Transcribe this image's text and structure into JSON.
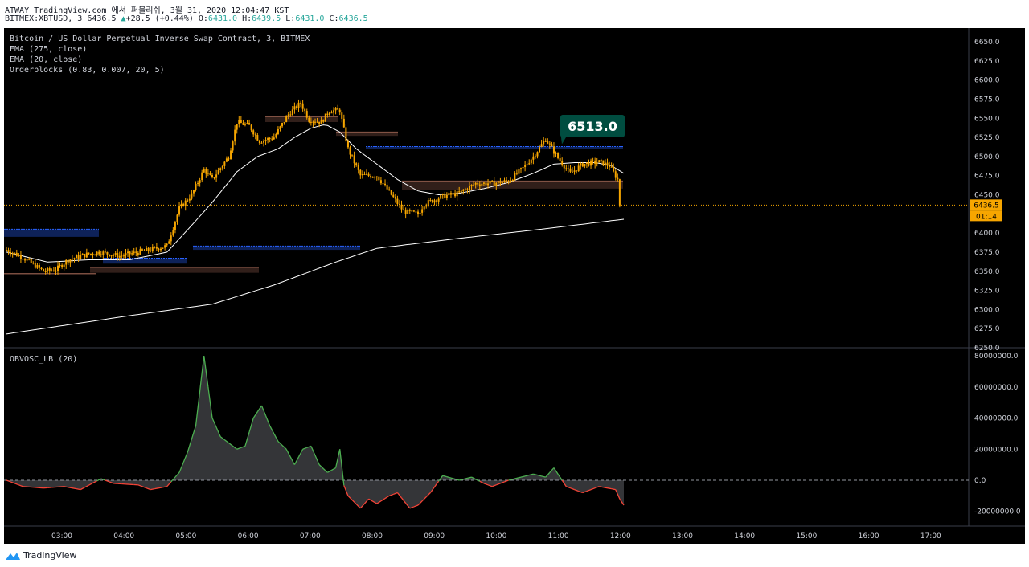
{
  "header": {
    "line1": "ATWAY TradingView.com 에서 퍼블리쉬, 3월 31, 2020 12:04:47 KST",
    "symbol": "BITMEX:XBTUSD, 3",
    "price": "6436.5",
    "arrow": "▲",
    "change": "+28.5 (+0.44%)",
    "o_label": "O:",
    "o_value": "6431.0",
    "h_label": "H:",
    "h_value": "6439.5",
    "l_label": "L:",
    "l_value": "6431.0",
    "c_label": "C:",
    "c_value": "6436.5"
  },
  "legend": {
    "title": "Bitcoin / US Dollar Perpetual Inverse Swap Contract, 3, BITMEX",
    "ema_slow": "EMA (275, close)",
    "ema_fast": "EMA (20, close)",
    "orderblocks": "Orderblocks (0.83, 0.007, 20, 5)",
    "oscillator": "OBVOSC_LB (20)"
  },
  "colors": {
    "background": "#000000",
    "candle": "#f7a600",
    "ema": "#ffffff",
    "bull_block": "#2962ff",
    "bear_block": "#8d5a4a",
    "osc_pos": "#4caf50",
    "osc_neg": "#f44336",
    "callout": "#004d40"
  },
  "callout": "6513.0",
  "price_badge": "6436.5",
  "countdown_badge": "01:14",
  "price_axis": [
    "6650.0",
    "6625.0",
    "6600.0",
    "6575.0",
    "6550.0",
    "6525.0",
    "6500.0",
    "6475.0",
    "6450.0",
    "6425.0",
    "6400.0",
    "6375.0",
    "6350.0",
    "6325.0",
    "6300.0",
    "6275.0",
    "6250.0"
  ],
  "osc_axis": [
    "80000000.0",
    "60000000.0",
    "40000000.0",
    "20000000.0",
    "0.0",
    "-20000000.0"
  ],
  "time_axis": [
    "03:00",
    "04:00",
    "05:00",
    "06:00",
    "07:00",
    "08:00",
    "09:00",
    "10:00",
    "11:00",
    "12:00",
    "13:00",
    "14:00",
    "15:00",
    "16:00",
    "17:00"
  ],
  "brand": "TradingView",
  "chart_data": {
    "type": "candlestick",
    "price_axis": {
      "min": 6250,
      "max": 6660
    },
    "osc_axis": {
      "min": -25000000,
      "max": 82000000
    },
    "time_axis": {
      "start": "02:25",
      "end": "17:30"
    },
    "key_points": {
      "close_points": [
        [
          0,
          6378
        ],
        [
          8,
          6368
        ],
        [
          18,
          6350
        ],
        [
          24,
          6352
        ],
        [
          30,
          6365
        ],
        [
          39,
          6372
        ],
        [
          45,
          6375
        ],
        [
          55,
          6370
        ],
        [
          66,
          6376
        ],
        [
          78,
          6383
        ],
        [
          84,
          6432
        ],
        [
          90,
          6450
        ],
        [
          96,
          6483
        ],
        [
          100,
          6470
        ],
        [
          108,
          6500
        ],
        [
          112,
          6545
        ],
        [
          118,
          6540
        ],
        [
          123,
          6520
        ],
        [
          130,
          6525
        ],
        [
          137,
          6555
        ],
        [
          143,
          6570
        ],
        [
          147,
          6548
        ],
        [
          153,
          6545
        ],
        [
          157,
          6560
        ],
        [
          162,
          6560
        ],
        [
          166,
          6510
        ],
        [
          172,
          6475
        ],
        [
          180,
          6475
        ],
        [
          187,
          6450
        ],
        [
          193,
          6428
        ],
        [
          200,
          6425
        ],
        [
          203,
          6438
        ],
        [
          212,
          6448
        ],
        [
          220,
          6452
        ],
        [
          228,
          6465
        ],
        [
          236,
          6465
        ],
        [
          244,
          6468
        ],
        [
          250,
          6482
        ],
        [
          256,
          6500
        ],
        [
          262,
          6523
        ],
        [
          268,
          6498
        ],
        [
          274,
          6478
        ],
        [
          280,
          6490
        ],
        [
          288,
          6493
        ],
        [
          293,
          6488
        ],
        [
          297,
          6470
        ],
        [
          298,
          6437
        ]
      ],
      "ema20_points": [
        [
          0,
          6375
        ],
        [
          20,
          6362
        ],
        [
          40,
          6365
        ],
        [
          60,
          6365
        ],
        [
          78,
          6375
        ],
        [
          90,
          6410
        ],
        [
          100,
          6440
        ],
        [
          112,
          6480
        ],
        [
          122,
          6500
        ],
        [
          132,
          6510
        ],
        [
          140,
          6525
        ],
        [
          148,
          6537
        ],
        [
          155,
          6542
        ],
        [
          162,
          6532
        ],
        [
          170,
          6510
        ],
        [
          180,
          6490
        ],
        [
          190,
          6470
        ],
        [
          200,
          6455
        ],
        [
          210,
          6450
        ],
        [
          220,
          6452
        ],
        [
          232,
          6458
        ],
        [
          244,
          6466
        ],
        [
          256,
          6478
        ],
        [
          266,
          6490
        ],
        [
          276,
          6492
        ],
        [
          286,
          6492
        ],
        [
          294,
          6488
        ],
        [
          300,
          6478
        ]
      ],
      "ema275_points": [
        [
          0,
          6268
        ],
        [
          60,
          6292
        ],
        [
          100,
          6307
        ],
        [
          130,
          6332
        ],
        [
          160,
          6362
        ],
        [
          180,
          6380
        ],
        [
          220,
          6393
        ],
        [
          260,
          6405
        ],
        [
          300,
          6418
        ]
      ],
      "osc_points": [
        [
          0,
          0
        ],
        [
          8,
          -4
        ],
        [
          18,
          -5
        ],
        [
          28,
          -4
        ],
        [
          36,
          -6
        ],
        [
          46,
          1
        ],
        [
          52,
          -2
        ],
        [
          64,
          -3
        ],
        [
          70,
          -6
        ],
        [
          78,
          -4
        ],
        [
          84,
          5
        ],
        [
          88,
          18
        ],
        [
          92,
          35
        ],
        [
          96,
          80
        ],
        [
          100,
          40
        ],
        [
          104,
          28
        ],
        [
          112,
          20
        ],
        [
          116,
          22
        ],
        [
          120,
          40
        ],
        [
          124,
          48
        ],
        [
          128,
          35
        ],
        [
          132,
          25
        ],
        [
          136,
          20
        ],
        [
          140,
          10
        ],
        [
          144,
          20
        ],
        [
          148,
          22
        ],
        [
          152,
          10
        ],
        [
          156,
          5
        ],
        [
          160,
          8
        ],
        [
          162,
          20
        ],
        [
          163,
          0
        ],
        [
          166,
          -10
        ],
        [
          172,
          -18
        ],
        [
          176,
          -12
        ],
        [
          180,
          -15
        ],
        [
          186,
          -10
        ],
        [
          190,
          -8
        ],
        [
          196,
          -18
        ],
        [
          200,
          -16
        ],
        [
          206,
          -8
        ],
        [
          212,
          3
        ],
        [
          220,
          0
        ],
        [
          226,
          2
        ],
        [
          232,
          -2
        ],
        [
          236,
          -4
        ],
        [
          240,
          -2
        ],
        [
          244,
          0
        ],
        [
          250,
          2
        ],
        [
          256,
          4
        ],
        [
          262,
          2
        ],
        [
          266,
          8
        ],
        [
          272,
          -4
        ],
        [
          280,
          -8
        ],
        [
          288,
          -4
        ],
        [
          296,
          -6
        ],
        [
          298,
          -12
        ],
        [
          300,
          -16
        ]
      ]
    }
  }
}
